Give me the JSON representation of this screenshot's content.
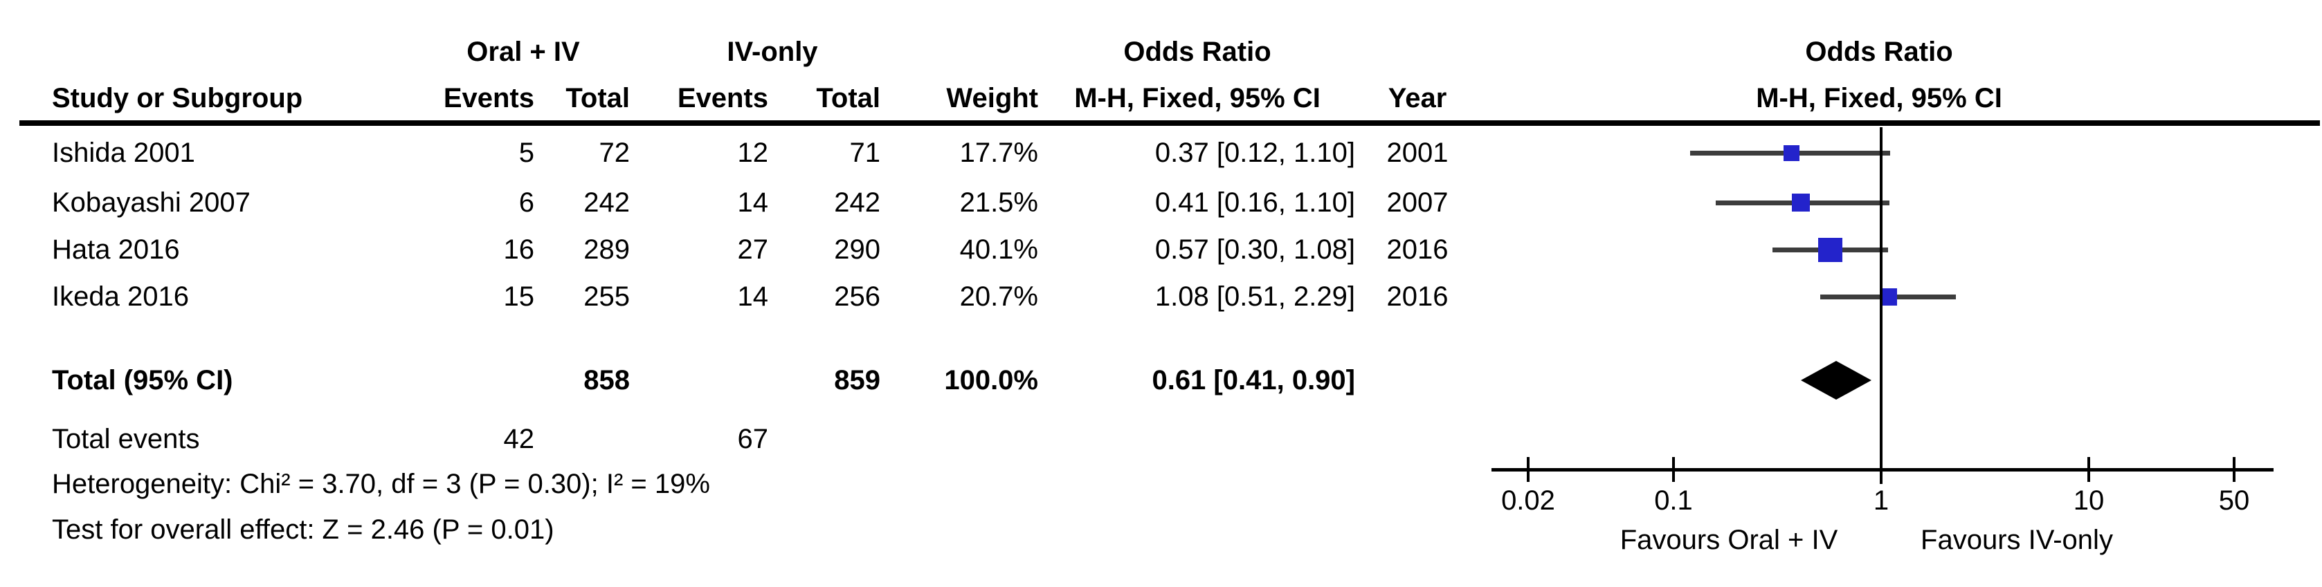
{
  "header": {
    "group_left": "Oral + IV",
    "group_right": "IV-only",
    "study_col": "Study or Subgroup",
    "events_col_left": "Events",
    "total_col_left": "Total",
    "events_col_right": "Events",
    "total_col_right": "Total",
    "weight_col": "Weight",
    "or_title": "Odds Ratio",
    "or_subtitle": "M-H, Fixed, 95% CI",
    "year_col": "Year",
    "plot_title": "Odds Ratio",
    "plot_subtitle": "M-H, Fixed, 95% CI"
  },
  "total_row": {
    "label": "Total (95% CI)",
    "total1": "858",
    "total2": "859",
    "weight": "100.0%",
    "ci_text": "0.61 [0.41, 0.90]"
  },
  "total_events_row": {
    "label": "Total events",
    "events1": "42",
    "events2": "67"
  },
  "footnotes": {
    "heterogeneity": "Heterogeneity: Chi² = 3.70, df = 3 (P = 0.30); I² = 19%",
    "overall_effect": "Test for overall effect: Z = 2.46 (P = 0.01)"
  },
  "axis": {
    "tick_labels": [
      "0.02",
      "0.1",
      "1",
      "10",
      "50"
    ],
    "tick_values": [
      0.02,
      0.1,
      1,
      10,
      50
    ],
    "favours_left": "Favours Oral + IV",
    "favours_right": "Favours IV-only"
  },
  "colors": {
    "square": "#2323CB",
    "diamond": "#000000",
    "ci_line": "#3d3d3d",
    "axis": "#000000"
  },
  "chart_data": {
    "type": "forest",
    "effect_label": "Odds Ratio, M-H, Fixed, 95% CI",
    "x_scale": "log",
    "x_ticks": [
      0.02,
      0.1,
      1,
      10,
      50
    ],
    "xlim": [
      0.015,
      60
    ],
    "studies": [
      {
        "name": "Ishida 2001",
        "events_oral_iv": 5,
        "total_oral_iv": 72,
        "events_iv_only": 12,
        "total_iv_only": 71,
        "weight_pct": 17.7,
        "weight_text": "17.7%",
        "or": 0.37,
        "ci_low": 0.12,
        "ci_high": 1.1,
        "ci_text": "0.37 [0.12, 1.10]",
        "year": "2001"
      },
      {
        "name": "Kobayashi 2007",
        "events_oral_iv": 6,
        "total_oral_iv": 242,
        "events_iv_only": 14,
        "total_iv_only": 242,
        "weight_pct": 21.5,
        "weight_text": "21.5%",
        "or": 0.41,
        "ci_low": 0.16,
        "ci_high": 1.1,
        "ci_text": "0.41 [0.16, 1.10]",
        "year": "2007"
      },
      {
        "name": "Hata 2016",
        "events_oral_iv": 16,
        "total_oral_iv": 289,
        "events_iv_only": 27,
        "total_iv_only": 290,
        "weight_pct": 40.1,
        "weight_text": "40.1%",
        "or": 0.57,
        "ci_low": 0.3,
        "ci_high": 1.08,
        "ci_text": "0.57 [0.30, 1.08]",
        "year": "2016"
      },
      {
        "name": "Ikeda 2016",
        "events_oral_iv": 15,
        "total_oral_iv": 255,
        "events_iv_only": 14,
        "total_iv_only": 256,
        "weight_pct": 20.7,
        "weight_text": "20.7%",
        "or": 1.08,
        "ci_low": 0.51,
        "ci_high": 2.29,
        "ci_text": "1.08 [0.51, 2.29]",
        "year": "2016"
      }
    ],
    "total": {
      "label": "Total (95% CI)",
      "total_oral_iv": 858,
      "total_iv_only": 859,
      "weight_pct": 100.0,
      "or": 0.61,
      "ci_low": 0.41,
      "ci_high": 0.9,
      "total_events_oral_iv": 42,
      "total_events_iv_only": 67
    }
  }
}
